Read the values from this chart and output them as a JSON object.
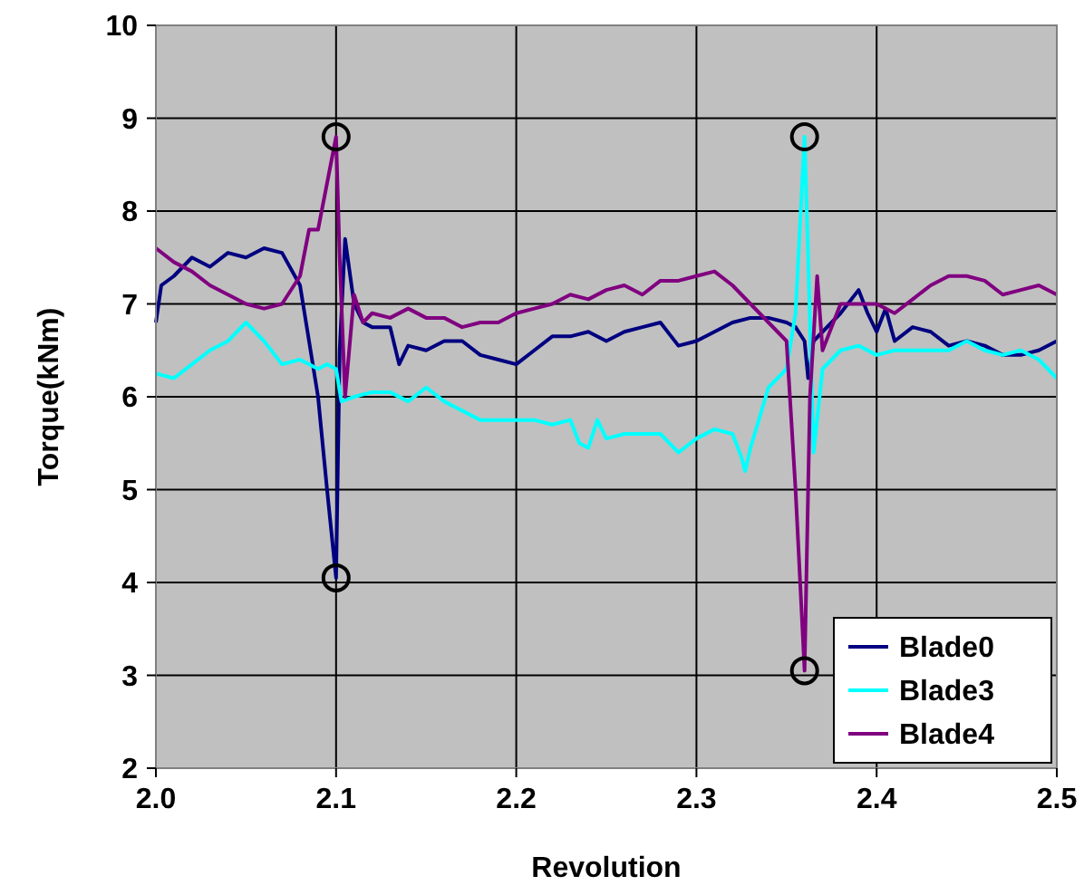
{
  "chart_data": {
    "type": "line",
    "xlabel": "Revolution",
    "ylabel": "Torque(kNm)",
    "xlim": [
      2.0,
      2.5
    ],
    "xticks": [
      {
        "value": 2.0,
        "label": "2.0"
      },
      2.1,
      2.2,
      2.3,
      2.4,
      {
        "value": 2.5,
        "label": "2.5"
      }
    ],
    "ylim": [
      2,
      10
    ],
    "yticks": [
      2,
      3,
      4,
      5,
      6,
      7,
      8,
      9,
      10
    ],
    "grid": true,
    "legend": "bottom right",
    "marker": "none",
    "line_style": "solid",
    "series": [
      {
        "name": "Blade0",
        "color": "#000080",
        "x": [
          2.0,
          2.003,
          2.01,
          2.02,
          2.03,
          2.04,
          2.05,
          2.06,
          2.07,
          2.08,
          2.09,
          2.095,
          2.1,
          2.102,
          2.105,
          2.11,
          2.115,
          2.12,
          2.13,
          2.135,
          2.14,
          2.15,
          2.16,
          2.17,
          2.18,
          2.19,
          2.2,
          2.21,
          2.22,
          2.23,
          2.24,
          2.25,
          2.26,
          2.27,
          2.28,
          2.29,
          2.3,
          2.31,
          2.32,
          2.33,
          2.34,
          2.35,
          2.355,
          2.36,
          2.362,
          2.365,
          2.37,
          2.38,
          2.39,
          2.395,
          2.4,
          2.405,
          2.41,
          2.42,
          2.43,
          2.44,
          2.45,
          2.46,
          2.47,
          2.48,
          2.49,
          2.5
        ],
        "values": [
          6.8,
          7.2,
          7.3,
          7.5,
          7.4,
          7.55,
          7.5,
          7.6,
          7.55,
          7.2,
          6.0,
          5.0,
          4.05,
          6.5,
          7.7,
          7.0,
          6.8,
          6.75,
          6.75,
          6.35,
          6.55,
          6.5,
          6.6,
          6.6,
          6.45,
          6.4,
          6.35,
          6.5,
          6.65,
          6.65,
          6.7,
          6.6,
          6.7,
          6.75,
          6.8,
          6.55,
          6.6,
          6.7,
          6.8,
          6.85,
          6.85,
          6.8,
          6.75,
          6.6,
          6.2,
          6.6,
          6.7,
          6.9,
          7.15,
          6.9,
          6.7,
          6.95,
          6.6,
          6.75,
          6.7,
          6.55,
          6.6,
          6.55,
          6.45,
          6.45,
          6.5,
          6.6
        ]
      },
      {
        "name": "Blade3",
        "color": "#00ffff",
        "x": [
          2.0,
          2.01,
          2.02,
          2.03,
          2.04,
          2.05,
          2.06,
          2.07,
          2.08,
          2.09,
          2.095,
          2.1,
          2.103,
          2.11,
          2.12,
          2.13,
          2.14,
          2.15,
          2.16,
          2.17,
          2.18,
          2.19,
          2.2,
          2.21,
          2.22,
          2.23,
          2.235,
          2.24,
          2.245,
          2.25,
          2.26,
          2.27,
          2.28,
          2.29,
          2.3,
          2.31,
          2.32,
          2.325,
          2.327,
          2.33,
          2.34,
          2.35,
          2.355,
          2.36,
          2.362,
          2.365,
          2.37,
          2.38,
          2.39,
          2.4,
          2.41,
          2.42,
          2.43,
          2.44,
          2.45,
          2.46,
          2.47,
          2.48,
          2.49,
          2.5
        ],
        "values": [
          6.25,
          6.2,
          6.35,
          6.5,
          6.6,
          6.8,
          6.6,
          6.35,
          6.4,
          6.3,
          6.35,
          6.3,
          5.95,
          6.0,
          6.05,
          6.05,
          5.95,
          6.1,
          5.95,
          5.85,
          5.75,
          5.75,
          5.75,
          5.75,
          5.7,
          5.75,
          5.5,
          5.45,
          5.75,
          5.55,
          5.6,
          5.6,
          5.6,
          5.4,
          5.55,
          5.65,
          5.6,
          5.35,
          5.2,
          5.45,
          6.1,
          6.3,
          6.9,
          8.8,
          7.5,
          5.4,
          6.3,
          6.5,
          6.55,
          6.45,
          6.5,
          6.5,
          6.5,
          6.5,
          6.6,
          6.5,
          6.45,
          6.5,
          6.4,
          6.2
        ]
      },
      {
        "name": "Blade4",
        "color": "#800080",
        "x": [
          2.0,
          2.01,
          2.02,
          2.03,
          2.04,
          2.05,
          2.06,
          2.07,
          2.08,
          2.085,
          2.09,
          2.095,
          2.1,
          2.102,
          2.105,
          2.11,
          2.115,
          2.12,
          2.13,
          2.14,
          2.15,
          2.16,
          2.17,
          2.18,
          2.19,
          2.2,
          2.21,
          2.22,
          2.23,
          2.24,
          2.25,
          2.26,
          2.27,
          2.28,
          2.29,
          2.3,
          2.31,
          2.32,
          2.33,
          2.34,
          2.35,
          2.355,
          2.36,
          2.363,
          2.367,
          2.37,
          2.38,
          2.39,
          2.4,
          2.41,
          2.42,
          2.43,
          2.44,
          2.45,
          2.46,
          2.47,
          2.48,
          2.49,
          2.5
        ],
        "values": [
          7.6,
          7.45,
          7.35,
          7.2,
          7.1,
          7.0,
          6.95,
          7.0,
          7.3,
          7.8,
          7.8,
          8.3,
          8.8,
          7.5,
          6.0,
          7.1,
          6.8,
          6.9,
          6.85,
          6.95,
          6.85,
          6.85,
          6.75,
          6.8,
          6.8,
          6.9,
          6.95,
          7.0,
          7.1,
          7.05,
          7.15,
          7.2,
          7.1,
          7.25,
          7.25,
          7.3,
          7.35,
          7.2,
          7.0,
          6.8,
          6.6,
          5.0,
          3.05,
          6.0,
          7.3,
          6.5,
          7.0,
          7.0,
          7.0,
          6.9,
          7.05,
          7.2,
          7.3,
          7.3,
          7.25,
          7.1,
          7.15,
          7.2,
          7.1
        ]
      }
    ]
  }
}
